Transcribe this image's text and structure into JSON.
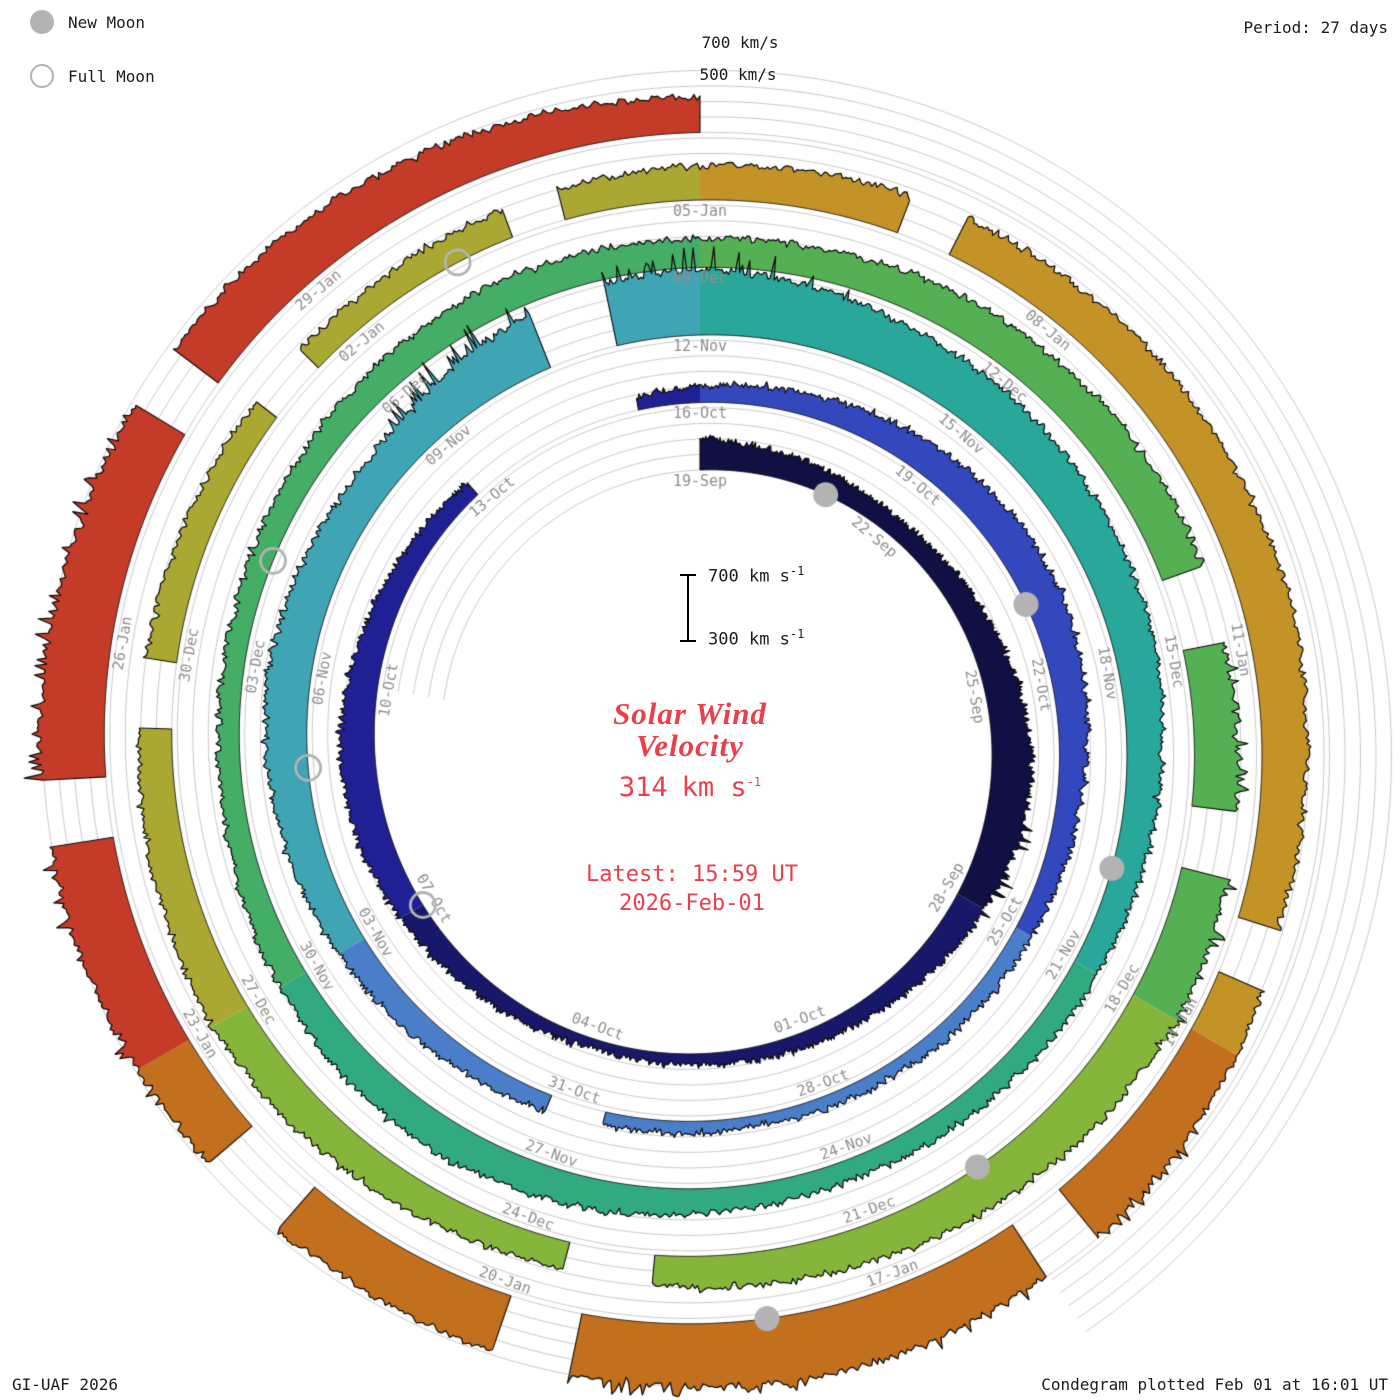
{
  "legend": {
    "new_moon": "New Moon",
    "full_moon": "Full Moon"
  },
  "period_label": "Period: 27 days",
  "axis_top": {
    "l700": "700 km/s",
    "l500": "500 km/s"
  },
  "center": {
    "title1": "Solar Wind",
    "title2": "Velocity",
    "value": "314",
    "unit": "km s",
    "exp": "-1",
    "latest": "Latest: 15:59 UT",
    "date": "2026-Feb-01",
    "scale_top": "700",
    "scale_bottom": "300"
  },
  "footer": {
    "left": "GI-UAF 2026",
    "right": "Condegram plotted Feb 01 at 16:01 UT"
  },
  "colors": {
    "accent_red": "#e8414b",
    "grid": "#bdbdbd",
    "date_label_gray": "#909090",
    "moon_gray": "#b3b3b3",
    "outline_black": "#0d0d0d"
  },
  "chart_data": {
    "type": "area",
    "variant": "spiral-condegram",
    "title": "Solar Wind Velocity",
    "current_value_km_s": 314,
    "latest": "Latest: 15:59 UT 2026-Feb-01",
    "period_days": 27,
    "start_date": "2025-09-19",
    "end_date": "2026-02-01",
    "span_days": 135,
    "vmin_km_s": 300,
    "vmax_km_s": 700,
    "grid_levels_km_s": [
      300,
      400,
      500,
      600,
      700
    ],
    "date_label_step_days": 3,
    "date_labels": [
      {
        "day": 0,
        "label": "19-Sep"
      },
      {
        "day": 3,
        "label": "22-Sep"
      },
      {
        "day": 6,
        "label": "25-Sep"
      },
      {
        "day": 9,
        "label": "28-Sep"
      },
      {
        "day": 12,
        "label": "01-Oct"
      },
      {
        "day": 15,
        "label": "04-Oct"
      },
      {
        "day": 18,
        "label": "07-Oct"
      },
      {
        "day": 21,
        "label": "10-Oct"
      },
      {
        "day": 24,
        "label": "13-Oct"
      },
      {
        "day": 27,
        "label": "16-Oct"
      },
      {
        "day": 30,
        "label": "19-Oct"
      },
      {
        "day": 33,
        "label": "22-Oct"
      },
      {
        "day": 36,
        "label": "25-Oct"
      },
      {
        "day": 39,
        "label": "28-Oct"
      },
      {
        "day": 42,
        "label": "31-Oct"
      },
      {
        "day": 45,
        "label": "03-Nov"
      },
      {
        "day": 48,
        "label": "06-Nov"
      },
      {
        "day": 51,
        "label": "09-Nov"
      },
      {
        "day": 54,
        "label": "12-Nov"
      },
      {
        "day": 57,
        "label": "15-Nov"
      },
      {
        "day": 60,
        "label": "18-Nov"
      },
      {
        "day": 63,
        "label": "21-Nov"
      },
      {
        "day": 66,
        "label": "24-Nov"
      },
      {
        "day": 69,
        "label": "27-Nov"
      },
      {
        "day": 72,
        "label": "30-Nov"
      },
      {
        "day": 75,
        "label": "03-Dec"
      },
      {
        "day": 78,
        "label": "06-Dec"
      },
      {
        "day": 81,
        "label": "09-Dec"
      },
      {
        "day": 84,
        "label": "12-Dec"
      },
      {
        "day": 87,
        "label": "15-Dec"
      },
      {
        "day": 90,
        "label": "18-Dec"
      },
      {
        "day": 93,
        "label": "21-Dec"
      },
      {
        "day": 96,
        "label": "24-Dec"
      },
      {
        "day": 99,
        "label": "27-Dec"
      },
      {
        "day": 102,
        "label": "30-Dec"
      },
      {
        "day": 105,
        "label": "02-Jan"
      },
      {
        "day": 108,
        "label": "05-Jan"
      },
      {
        "day": 111,
        "label": "08-Jan"
      },
      {
        "day": 114,
        "label": "11-Jan"
      },
      {
        "day": 117,
        "label": "14-Jan"
      },
      {
        "day": 120,
        "label": "17-Jan"
      },
      {
        "day": 123,
        "label": "20-Jan"
      },
      {
        "day": 126,
        "label": "23-Jan"
      },
      {
        "day": 129,
        "label": "26-Jan"
      },
      {
        "day": 132,
        "label": "29-Jan"
      }
    ],
    "velocity_daily_km_s": [
      500,
      470,
      440,
      420,
      440,
      480,
      520,
      560,
      540,
      500,
      460,
      420,
      400,
      380,
      370,
      360,
      390,
      430,
      470,
      510,
      530,
      500,
      460,
      430,
      410,
      390,
      380,
      400,
      430,
      470,
      500,
      530,
      540,
      510,
      470,
      440,
      420,
      400,
      390,
      380,
      370,
      380,
      400,
      430,
      460,
      490,
      530,
      560,
      580,
      560,
      540,
      560,
      640,
      700,
      720,
      680,
      640,
      620,
      600,
      580,
      560,
      520,
      490,
      470,
      450,
      440,
      430,
      450,
      480,
      510,
      530,
      520,
      490,
      460,
      440,
      430,
      450,
      470,
      490,
      510,
      500,
      480,
      500,
      530,
      550,
      570,
      580,
      560,
      590,
      610,
      620,
      600,
      570,
      540,
      510,
      490,
      480,
      510,
      540,
      560,
      540,
      520,
      500,
      480,
      470,
      460,
      480,
      500,
      520,
      540,
      560,
      570,
      590,
      600,
      610,
      590,
      570,
      640,
      680,
      700,
      720,
      720,
      700,
      680,
      660,
      660,
      680,
      700,
      710,
      700,
      680,
      660,
      640,
      600,
      560,
      520
    ],
    "gaps_days": [
      [
        23.9,
        26.2
      ],
      [
        41.6,
        42.2
      ],
      [
        52.4,
        53.1
      ],
      [
        86.3,
        86.9
      ],
      [
        88.3,
        88.8
      ],
      [
        94.9,
        95.6
      ],
      [
        101.4,
        101.9
      ],
      [
        104.1,
        104.6
      ],
      [
        106.5,
        106.9
      ],
      [
        109.6,
        110.0
      ],
      [
        116.1,
        116.5
      ],
      [
        118.6,
        119.0
      ],
      [
        122.4,
        122.9
      ],
      [
        124.6,
        125.2
      ],
      [
        127.6,
        128.0
      ],
      [
        130.6,
        131.0
      ]
    ],
    "spike_windows": [
      {
        "start": 7.0,
        "end": 9.5,
        "amp": 70
      },
      {
        "start": 50.5,
        "end": 55.5,
        "amp": 160
      },
      {
        "start": 87.0,
        "end": 90.5,
        "amp": 60
      },
      {
        "start": 117.5,
        "end": 122.5,
        "amp": 70
      },
      {
        "start": 125.5,
        "end": 130.5,
        "amp": 90
      }
    ],
    "palette_9day": [
      "#101044",
      "#18186a",
      "#202095",
      "#3348bd",
      "#4a7ec8",
      "#3fa4b4",
      "#28a79a",
      "#32aa80",
      "#44ad66",
      "#55b053",
      "#86b53b",
      "#aaa832",
      "#c39327",
      "#c26f1e",
      "#c43b28"
    ],
    "new_moon_days": [
      2,
      32,
      62,
      92,
      121
    ],
    "full_moon_days": [
      18,
      47,
      76,
      106
    ]
  }
}
